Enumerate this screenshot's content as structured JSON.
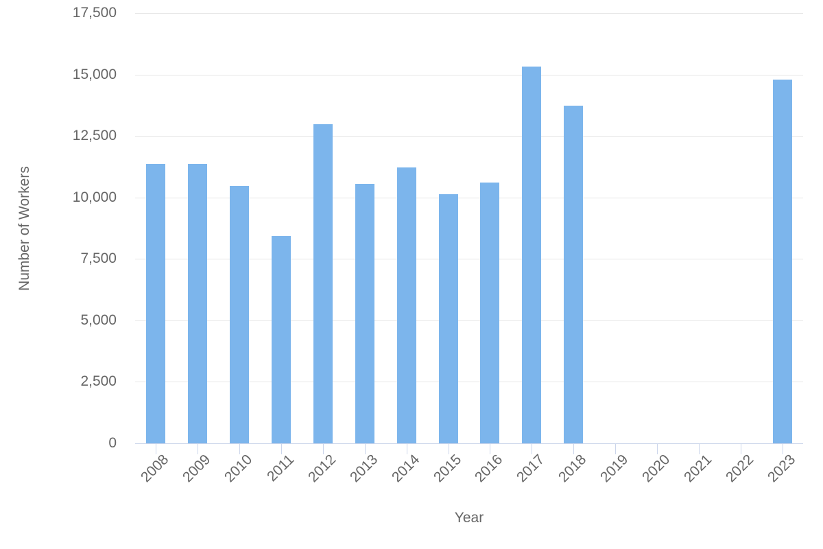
{
  "chart_data": {
    "type": "bar",
    "title": "",
    "xlabel": "Year",
    "ylabel": "Number of Workers",
    "categories": [
      "2008",
      "2009",
      "2010",
      "2011",
      "2012",
      "2013",
      "2014",
      "2015",
      "2016",
      "2017",
      "2018",
      "2019",
      "2020",
      "2021",
      "2022",
      "2023"
    ],
    "values": [
      11360,
      11360,
      10470,
      8430,
      12990,
      10550,
      11230,
      10120,
      10610,
      15310,
      13730,
      null,
      null,
      null,
      null,
      14800
    ],
    "ylim": [
      0,
      17500
    ],
    "ytick_step": 2500,
    "ytick_labels": [
      "0",
      "2,500",
      "5,000",
      "7,500",
      "10,000",
      "12,500",
      "15,000",
      "17,500"
    ],
    "grid": true,
    "legend": "none",
    "colors": {
      "bar": "#7cb5ec",
      "grid": "#e6e6e6",
      "axis_line": "#ccd6eb",
      "text": "#666666"
    }
  }
}
